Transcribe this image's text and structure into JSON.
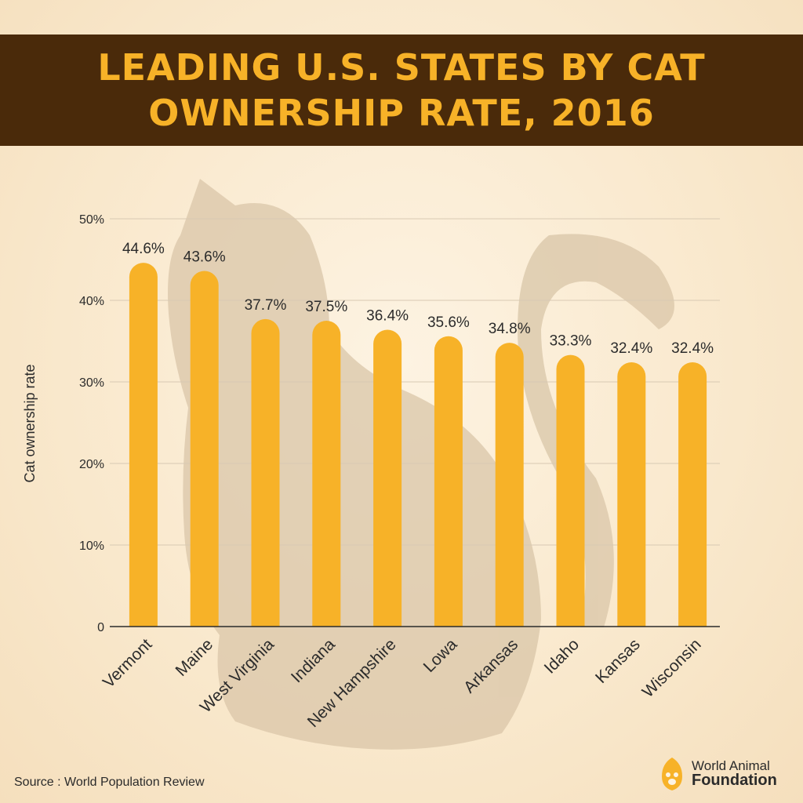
{
  "title": "LEADING U.S. STATES BY CAT OWNERSHIP RATE, 2016",
  "source": "Source : World Population Review",
  "brand": {
    "line1": "World Animal",
    "line2": "Foundation"
  },
  "colors": {
    "bar": "#f7b228",
    "title_bg": "#4a2a0a",
    "title_text": "#f7b228",
    "silhouette": "#d9c6a8",
    "grid": "#d8c9b3",
    "axis": "#2b2b2b",
    "text": "#2b2b2b"
  },
  "chart_data": {
    "type": "bar",
    "title": "LEADING U.S. STATES BY CAT OWNERSHIP RATE, 2016",
    "xlabel": "",
    "ylabel": "Cat ownership rate",
    "ylim": [
      0,
      50
    ],
    "yticks": [
      {
        "value": 0,
        "label": "0"
      },
      {
        "value": 10,
        "label": "10%"
      },
      {
        "value": 20,
        "label": "20%"
      },
      {
        "value": 30,
        "label": "30%"
      },
      {
        "value": 40,
        "label": "40%"
      },
      {
        "value": 50,
        "label": "50%"
      }
    ],
    "categories": [
      "Vermont",
      "Maine",
      "West Virginia",
      "Indiana",
      "New Hampshire",
      "Lowa",
      "Arkansas",
      "Idaho",
      "Kansas",
      "Wisconsin"
    ],
    "values": [
      44.6,
      43.6,
      37.7,
      37.5,
      36.4,
      35.6,
      34.8,
      33.3,
      32.4,
      32.4
    ],
    "data_labels": [
      "44.6%",
      "43.6%",
      "37.7%",
      "37.5%",
      "36.4%",
      "35.6%",
      "34.8%",
      "33.3%",
      "32.4%",
      "32.4%"
    ],
    "grid": true
  }
}
